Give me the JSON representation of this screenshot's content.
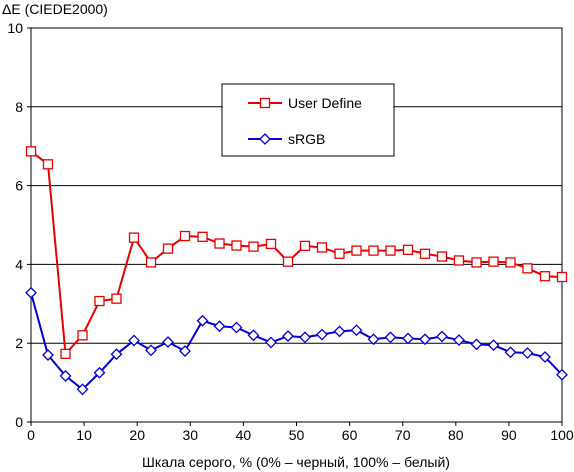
{
  "chart_data": {
    "type": "line",
    "ylabel": "ΔE (CIEDE2000)",
    "xlabel": "Шкала серого, % (0% – черный, 100% – белый)",
    "xlim": [
      0,
      100
    ],
    "ylim": [
      0,
      10
    ],
    "x_ticks": [
      "0",
      "10",
      "20",
      "30",
      "40",
      "50",
      "60",
      "70",
      "80",
      "90",
      "100"
    ],
    "y_ticks": [
      "0",
      "2",
      "4",
      "6",
      "8",
      "10"
    ],
    "grid": "horizontal",
    "legend_position": "top-center",
    "series": [
      {
        "name": "User Define",
        "color": "#e60000",
        "marker": "square",
        "x": [
          0,
          3.2,
          6.5,
          9.7,
          12.9,
          16.1,
          19.4,
          22.6,
          25.8,
          29,
          32.3,
          35.5,
          38.7,
          41.9,
          45.2,
          48.4,
          51.6,
          54.8,
          58.1,
          61.3,
          64.5,
          67.7,
          71,
          74.2,
          77.4,
          80.6,
          83.9,
          87.1,
          90.3,
          93.5,
          96.8,
          100
        ],
        "y": [
          6.87,
          6.54,
          1.73,
          2.2,
          3.07,
          3.13,
          4.68,
          4.05,
          4.4,
          4.72,
          4.7,
          4.53,
          4.48,
          4.45,
          4.52,
          4.07,
          4.47,
          4.43,
          4.27,
          4.35,
          4.35,
          4.35,
          4.37,
          4.27,
          4.2,
          4.1,
          4.05,
          4.07,
          4.05,
          3.9,
          3.7,
          3.68
        ]
      },
      {
        "name": "sRGB",
        "color": "#0000d0",
        "marker": "diamond",
        "x": [
          0,
          3.2,
          6.5,
          9.7,
          12.9,
          16.1,
          19.4,
          22.6,
          25.8,
          29,
          32.3,
          35.5,
          38.7,
          41.9,
          45.2,
          48.4,
          51.6,
          54.8,
          58.1,
          61.3,
          64.5,
          67.7,
          71,
          74.2,
          77.4,
          80.6,
          83.9,
          87.1,
          90.3,
          93.5,
          96.8,
          100
        ],
        "y": [
          3.28,
          1.7,
          1.17,
          0.83,
          1.25,
          1.72,
          2.07,
          1.82,
          2.03,
          1.8,
          2.57,
          2.43,
          2.4,
          2.2,
          2.02,
          2.18,
          2.15,
          2.22,
          2.3,
          2.33,
          2.1,
          2.15,
          2.12,
          2.1,
          2.17,
          2.08,
          1.97,
          1.95,
          1.77,
          1.75,
          1.65,
          1.2
        ]
      }
    ]
  }
}
